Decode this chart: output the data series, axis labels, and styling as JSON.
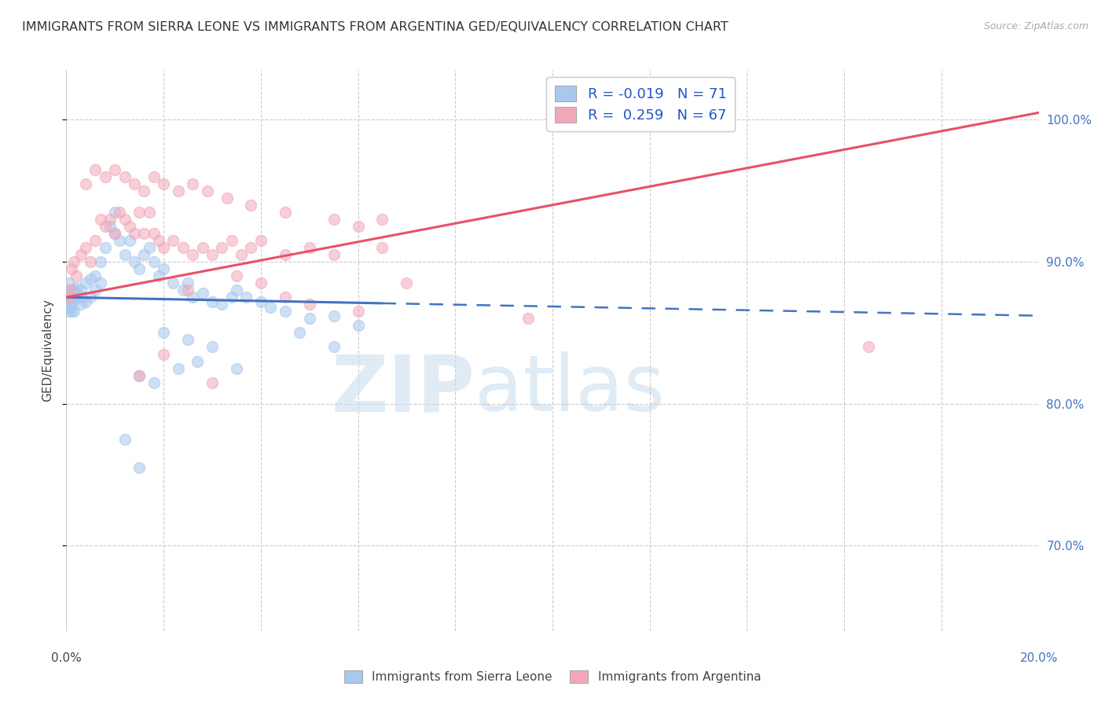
{
  "title": "IMMIGRANTS FROM SIERRA LEONE VS IMMIGRANTS FROM ARGENTINA GED/EQUIVALENCY CORRELATION CHART",
  "source": "Source: ZipAtlas.com",
  "ylabel": "GED/Equivalency",
  "xlim": [
    0.0,
    20.0
  ],
  "ylim": [
    64.0,
    103.5
  ],
  "ytick_vals": [
    70.0,
    80.0,
    90.0,
    100.0
  ],
  "ytick_labels": [
    "70.0%",
    "80.0%",
    "90.0%",
    "100.0%"
  ],
  "legend_r_blue": "-0.019",
  "legend_n_blue": "71",
  "legend_r_pink": "0.259",
  "legend_n_pink": "67",
  "blue_color": "#A8C8EE",
  "pink_color": "#F2A8B8",
  "blue_line_color": "#4472C4",
  "pink_line_color": "#E8506A",
  "blue_line_solid_end": 6.5,
  "blue_line_x0": 0.0,
  "blue_line_y0": 87.5,
  "blue_line_x1": 20.0,
  "blue_line_y1": 86.2,
  "pink_line_x0": 0.0,
  "pink_line_y0": 87.5,
  "pink_line_x1": 20.0,
  "pink_line_y1": 100.5,
  "blue_scatter_x": [
    0.05,
    0.05,
    0.05,
    0.05,
    0.05,
    0.05,
    0.08,
    0.08,
    0.08,
    0.1,
    0.1,
    0.1,
    0.12,
    0.15,
    0.15,
    0.15,
    0.2,
    0.2,
    0.3,
    0.3,
    0.3,
    0.4,
    0.4,
    0.5,
    0.5,
    0.6,
    0.6,
    0.7,
    0.7,
    0.8,
    0.9,
    1.0,
    1.0,
    1.1,
    1.2,
    1.3,
    1.4,
    1.5,
    1.6,
    1.7,
    1.8,
    1.9,
    2.0,
    2.2,
    2.4,
    2.5,
    2.6,
    2.8,
    3.0,
    3.2,
    3.4,
    3.5,
    3.7,
    4.0,
    4.2,
    4.5,
    5.0,
    5.5,
    6.0,
    2.0,
    2.5,
    3.0,
    1.5,
    1.8,
    2.3,
    2.7,
    3.5,
    4.8,
    5.5,
    1.2,
    1.5
  ],
  "blue_scatter_y": [
    86.5,
    87.0,
    87.5,
    88.0,
    88.5,
    87.8,
    87.2,
    86.8,
    87.5,
    88.0,
    87.0,
    86.5,
    87.5,
    88.0,
    87.3,
    86.5,
    87.8,
    88.2,
    87.5,
    88.0,
    87.0,
    88.5,
    87.2,
    88.8,
    87.5,
    89.0,
    88.0,
    90.0,
    88.5,
    91.0,
    92.5,
    93.5,
    92.0,
    91.5,
    90.5,
    91.5,
    90.0,
    89.5,
    90.5,
    91.0,
    90.0,
    89.0,
    89.5,
    88.5,
    88.0,
    88.5,
    87.5,
    87.8,
    87.2,
    87.0,
    87.5,
    88.0,
    87.5,
    87.2,
    86.8,
    86.5,
    86.0,
    86.2,
    85.5,
    85.0,
    84.5,
    84.0,
    82.0,
    81.5,
    82.5,
    83.0,
    82.5,
    85.0,
    84.0,
    77.5,
    75.5
  ],
  "pink_scatter_x": [
    0.05,
    0.08,
    0.1,
    0.15,
    0.2,
    0.3,
    0.4,
    0.5,
    0.6,
    0.7,
    0.8,
    0.9,
    1.0,
    1.1,
    1.2,
    1.3,
    1.4,
    1.5,
    1.6,
    1.7,
    1.8,
    1.9,
    2.0,
    2.2,
    2.4,
    2.6,
    2.8,
    3.0,
    3.2,
    3.4,
    3.6,
    3.8,
    4.0,
    4.5,
    5.0,
    5.5,
    6.5,
    7.0,
    9.5,
    16.5,
    0.4,
    0.6,
    0.8,
    1.0,
    1.2,
    1.4,
    1.6,
    1.8,
    2.0,
    2.3,
    2.6,
    2.9,
    3.3,
    3.8,
    4.5,
    5.5,
    6.5,
    6.0,
    4.5,
    5.0,
    6.0,
    4.0,
    3.5,
    2.5,
    1.5,
    2.0,
    3.0
  ],
  "pink_scatter_y": [
    87.5,
    88.0,
    89.5,
    90.0,
    89.0,
    90.5,
    91.0,
    90.0,
    91.5,
    93.0,
    92.5,
    93.0,
    92.0,
    93.5,
    93.0,
    92.5,
    92.0,
    93.5,
    92.0,
    93.5,
    92.0,
    91.5,
    91.0,
    91.5,
    91.0,
    90.5,
    91.0,
    90.5,
    91.0,
    91.5,
    90.5,
    91.0,
    91.5,
    90.5,
    91.0,
    90.5,
    91.0,
    88.5,
    86.0,
    84.0,
    95.5,
    96.5,
    96.0,
    96.5,
    96.0,
    95.5,
    95.0,
    96.0,
    95.5,
    95.0,
    95.5,
    95.0,
    94.5,
    94.0,
    93.5,
    93.0,
    93.0,
    92.5,
    87.5,
    87.0,
    86.5,
    88.5,
    89.0,
    88.0,
    82.0,
    83.5,
    81.5
  ]
}
